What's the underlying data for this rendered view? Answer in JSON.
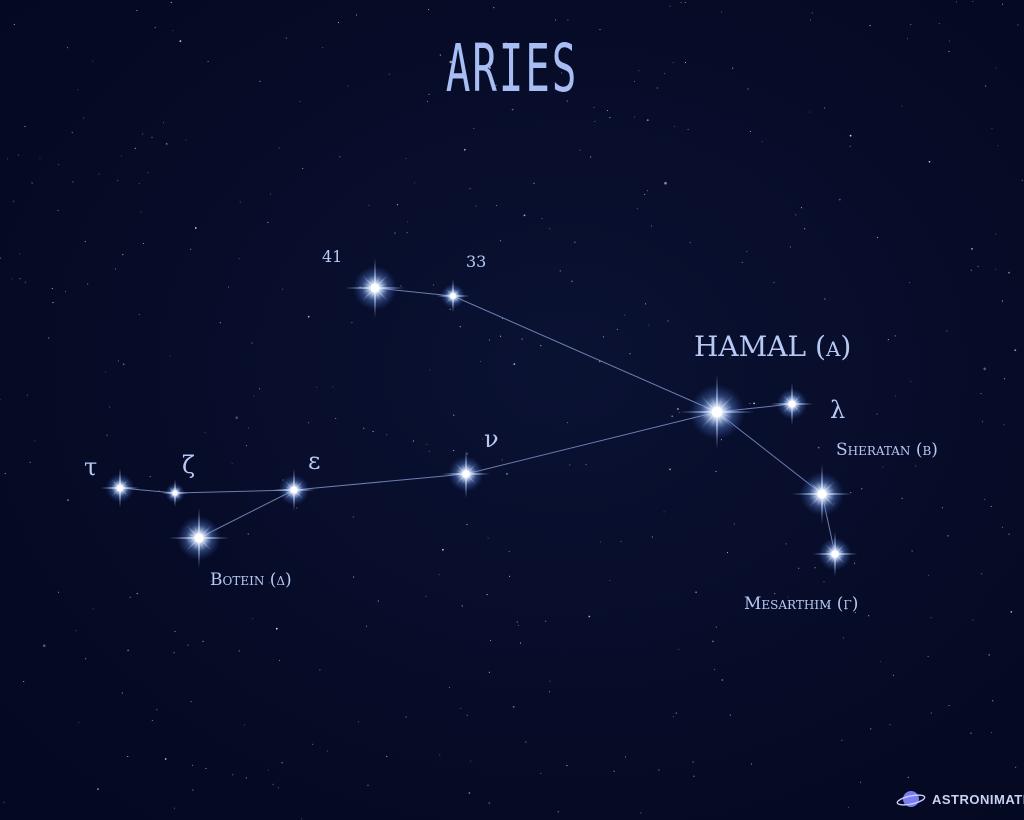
{
  "title": "ARIES",
  "brand": {
    "name": "ASTRONIMATE",
    "icon": "planet-icon",
    "accent": "#7b7cf0"
  },
  "colors": {
    "background": "#050a24",
    "line": "#8ea2da",
    "label": "#b8c9f4",
    "star": "#dfe9ff"
  },
  "labels": {
    "hamal": "HAMAL (α)",
    "sheratan": "Sheratan (β)",
    "mesarthim": "Mesarthim (γ)",
    "botein": "Botein (δ)",
    "lambda": "λ",
    "nu": "ν",
    "epsilon": "ε",
    "zeta": "ζ",
    "tau": "τ",
    "s41": "41",
    "s33": "33"
  }
}
